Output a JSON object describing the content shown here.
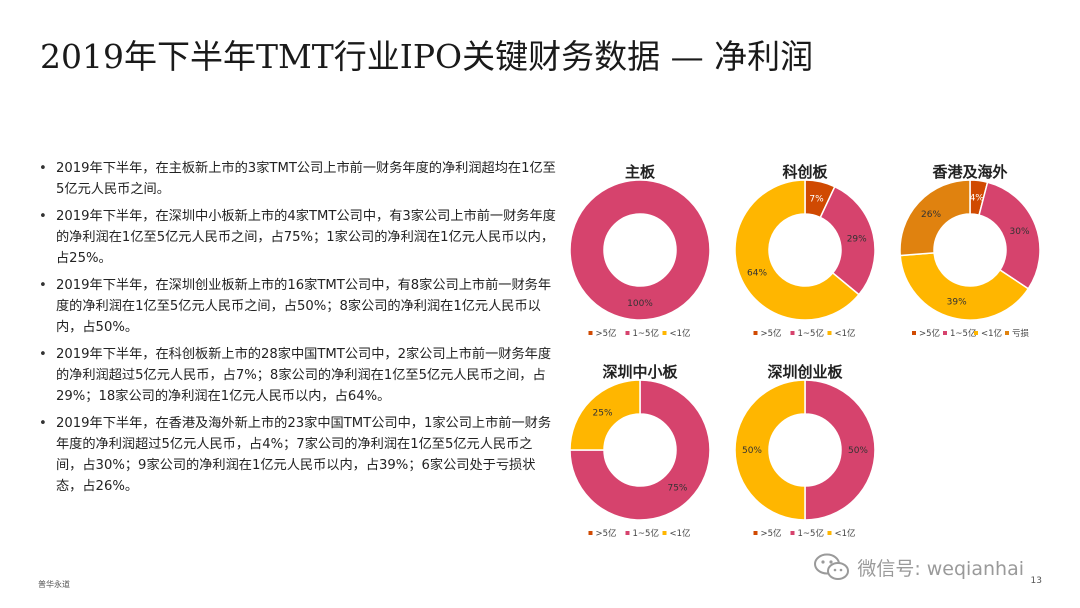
{
  "title": "2019年下半年TMT行业IPO关键财务数据 — 净利润",
  "bullets": [
    "2019年下半年，在主板新上市的3家TMT公司上市前一财务年度的净利润超均在1亿至5亿元人民币之间。",
    "2019年下半年，在深圳中小板新上市的4家TMT公司中，有3家公司上市前一财务年度的净利润在1亿至5亿元人民币之间，占75%；1家公司的净利润在1亿元人民币以内，占25%。",
    "2019年下半年，在深圳创业板新上市的16家TMT公司中，有8家公司上市前一财务年度的净利润在1亿至5亿元人民币之间，占50%；8家公司的净利润在1亿元人民币以内，占50%。",
    "2019年下半年，在科创板新上市的28家中国TMT公司中，2家公司上市前一财务年度的净利润超过5亿元人民币，占7%；8家公司的净利润在1亿至5亿元人民币之间，占29%；18家公司的净利润在1亿元人民币以内，占64%。",
    "2019年下半年，在香港及海外新上市的23家中国TMT公司中，1家公司上市前一财务年度的净利润超过5亿元人民币，占4%；7家公司的净利润在1亿至5亿元人民币之间，占30%；9家公司的净利润在1亿元人民币以内，占39%；6家公司处于亏损状态，占26%。"
  ],
  "colors": {
    "gt5": "#d04a02",
    "1to5": "#d6436d",
    "lt1": "#ffb600",
    "loss": "#e0820f"
  },
  "chart_data": [
    {
      "type": "pie",
      "title": "主板",
      "categories": [
        ">5亿",
        "1~5亿",
        "<1亿"
      ],
      "values": [
        0,
        100,
        0
      ],
      "labels": [
        "",
        "100%",
        ""
      ],
      "colors": [
        "#d04a02",
        "#d6436d",
        "#ffb600"
      ],
      "legend": [
        ">5亿",
        "1~5亿",
        "<1亿"
      ],
      "legend_position": "bottom"
    },
    {
      "type": "pie",
      "title": "科创板",
      "categories": [
        ">5亿",
        "1~5亿",
        "<1亿"
      ],
      "values": [
        7,
        29,
        64
      ],
      "labels": [
        "7%",
        "29%",
        "64%"
      ],
      "colors": [
        "#d04a02",
        "#d6436d",
        "#ffb600"
      ],
      "legend": [
        ">5亿",
        "1~5亿",
        "<1亿"
      ],
      "legend_position": "bottom"
    },
    {
      "type": "pie",
      "title": "香港及海外",
      "categories": [
        ">5亿",
        "1~5亿",
        "<1亿",
        "亏损"
      ],
      "values": [
        4,
        30,
        39,
        26
      ],
      "labels": [
        "4%",
        "30%",
        "39%",
        "26%"
      ],
      "colors": [
        "#d04a02",
        "#d6436d",
        "#ffb600",
        "#e0820f"
      ],
      "legend": [
        ">5亿",
        "1~5亿",
        "<1亿",
        "亏损"
      ],
      "legend_position": "bottom"
    },
    {
      "type": "pie",
      "title": "深圳中小板",
      "categories": [
        ">5亿",
        "1~5亿",
        "<1亿"
      ],
      "values": [
        0,
        75,
        25
      ],
      "labels": [
        "",
        "75%",
        "25%"
      ],
      "colors": [
        "#d04a02",
        "#d6436d",
        "#ffb600"
      ],
      "legend": [
        ">5亿",
        "1~5亿",
        "<1亿"
      ],
      "legend_position": "bottom"
    },
    {
      "type": "pie",
      "title": "深圳创业板",
      "categories": [
        ">5亿",
        "1~5亿",
        "<1亿"
      ],
      "values": [
        0,
        50,
        50
      ],
      "labels": [
        "",
        "50%",
        "50%"
      ],
      "colors": [
        "#d04a02",
        "#d6436d",
        "#ffb600"
      ],
      "legend": [
        ">5亿",
        "1~5亿",
        "<1亿"
      ],
      "legend_position": "bottom"
    }
  ],
  "footer": {
    "left": "普华永道",
    "page_number": "13",
    "watermark": "微信号: weqianhai"
  },
  "icons": {
    "watermark": "wechat-icon"
  }
}
